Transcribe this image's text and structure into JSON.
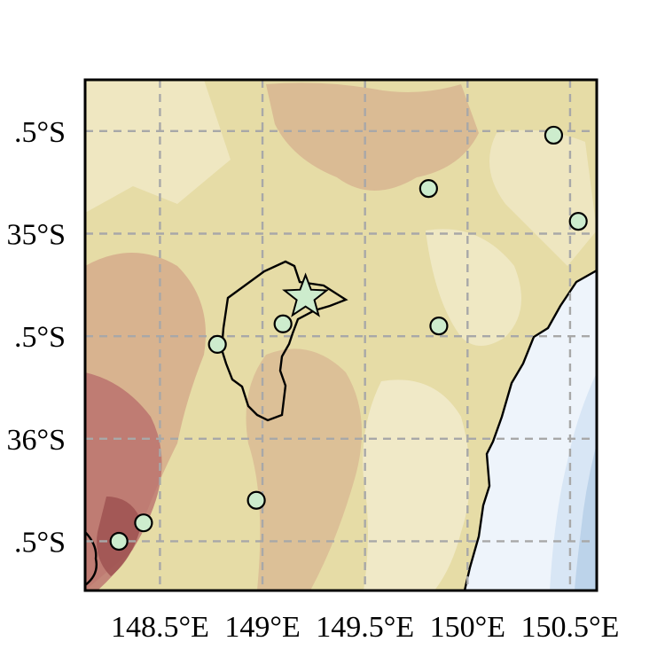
{
  "map": {
    "extent": {
      "lon_min": 148.135,
      "lon_max": 150.63,
      "lat_min": -36.74,
      "lat_max": -34.25
    },
    "grid": {
      "lons": [
        148.5,
        149.0,
        149.5,
        150.0,
        150.5
      ],
      "lats": [
        -34.5,
        -35.0,
        -35.5,
        -36.0,
        -36.5
      ]
    },
    "lon_labels": [
      "148.5°E",
      "149°E",
      "149.5°E",
      "150°E",
      "150.5°E"
    ],
    "lat_labels": [
      ".5°S",
      "35°S",
      ".5°S",
      "36°S",
      ".5°S"
    ],
    "colors": {
      "frame": "#000000",
      "gridline": "#a8a8a8",
      "station_fill": "#cdeccd",
      "star_fill": "#cdeccd",
      "terrain_low": "#f5f1dc",
      "terrain_mid": "#e6dca6",
      "terrain_high": "#d4a98a",
      "terrain_peak": "#b76a6a",
      "ocean_shallow": "#eef4fb",
      "ocean_deep": "#bcd3ea"
    },
    "stations": [
      {
        "lon": 150.42,
        "lat": -34.52
      },
      {
        "lon": 149.81,
        "lat": -34.78
      },
      {
        "lon": 150.54,
        "lat": -34.94
      },
      {
        "lon": 149.86,
        "lat": -35.45
      },
      {
        "lon": 149.1,
        "lat": -35.44
      },
      {
        "lon": 148.78,
        "lat": -35.54
      },
      {
        "lon": 148.97,
        "lat": -36.3
      },
      {
        "lon": 148.42,
        "lat": -36.41
      },
      {
        "lon": 148.3,
        "lat": -36.5
      }
    ],
    "star": {
      "lon": 149.21,
      "lat": -35.31
    }
  }
}
